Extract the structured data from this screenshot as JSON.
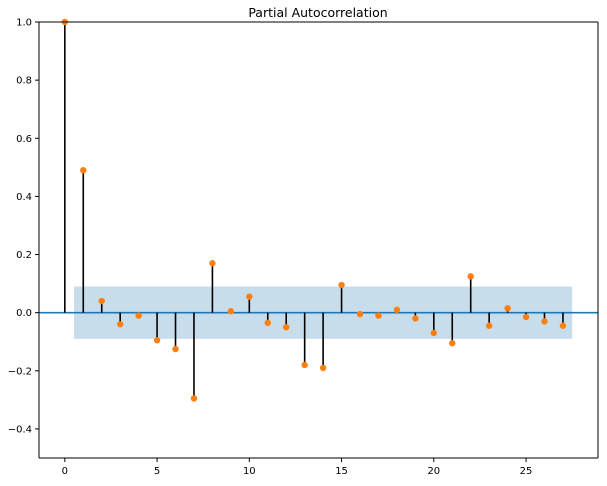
{
  "chart_data": {
    "type": "stem",
    "title": "Partial Autocorrelation",
    "xlabel": "",
    "ylabel": "",
    "xlim": [
      -1.4,
      28.9
    ],
    "ylim": [
      -0.5,
      1.0
    ],
    "xticks": [
      0,
      5,
      10,
      15,
      20,
      25
    ],
    "xtick_labels": [
      "0",
      "5",
      "10",
      "15",
      "20",
      "25"
    ],
    "yticks": [
      -0.4,
      -0.2,
      0.0,
      0.2,
      0.4,
      0.6,
      0.8,
      1.0
    ],
    "ytick_labels": [
      "−0.4",
      "−0.2",
      "0.0",
      "0.2",
      "0.4",
      "0.6",
      "0.8",
      "1.0"
    ],
    "grid": false,
    "confidence_band": {
      "x_range": [
        0.5,
        27.5
      ],
      "y_range": [
        -0.09,
        0.09
      ]
    },
    "lags": [
      0,
      1,
      2,
      3,
      4,
      5,
      6,
      7,
      8,
      9,
      10,
      11,
      12,
      13,
      14,
      15,
      16,
      17,
      18,
      19,
      20,
      21,
      22,
      23,
      24,
      25,
      26,
      27
    ],
    "values": [
      1.0,
      0.49,
      0.04,
      -0.04,
      -0.01,
      -0.095,
      -0.125,
      -0.295,
      0.17,
      0.005,
      0.055,
      -0.035,
      -0.05,
      -0.18,
      -0.19,
      0.095,
      -0.005,
      -0.01,
      0.01,
      -0.02,
      -0.07,
      -0.105,
      0.125,
      -0.045,
      0.015,
      -0.015,
      -0.03,
      -0.045
    ],
    "colors": {
      "stem": "#000000",
      "marker": "#ff7f0e",
      "zero_line": "#1f77b4",
      "band": "#1f77b4",
      "axes": "#000000",
      "text": "#000000"
    }
  }
}
